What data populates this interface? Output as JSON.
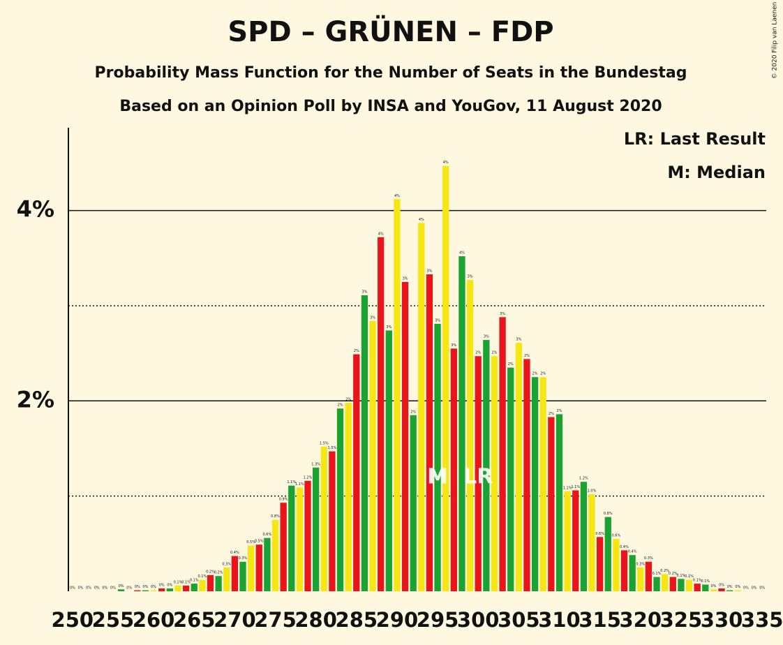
{
  "chart_data": {
    "type": "bar",
    "title": "SPD – GRÜNEN – FDP",
    "subtitle": "Probability Mass Function for the Number of Seats in the Bundestag",
    "subtitle2": "Based on an Opinion Poll by INSA and YouGov, 11 August 2020",
    "copyright": "© 2020 Filip van Laenen",
    "legend": [
      "LR: Last Result",
      "M: Median"
    ],
    "x": [
      250,
      251,
      252,
      253,
      254,
      255,
      256,
      257,
      258,
      259,
      260,
      261,
      262,
      263,
      264,
      265,
      266,
      267,
      268,
      269,
      270,
      271,
      272,
      273,
      274,
      275,
      276,
      277,
      278,
      279,
      280,
      281,
      282,
      283,
      284,
      285,
      286,
      287,
      288,
      289,
      290,
      291,
      292,
      293,
      294,
      295,
      296,
      297,
      298,
      299,
      300,
      301,
      302,
      303,
      304,
      305,
      306,
      307,
      308,
      309,
      310,
      311,
      312,
      313,
      314,
      315,
      316,
      317,
      318,
      319,
      320,
      321,
      322,
      323,
      324,
      325,
      326,
      327,
      328,
      329,
      330,
      331,
      332,
      333,
      334,
      335
    ],
    "values": [
      0,
      0,
      0,
      0,
      0,
      0,
      0.02,
      0,
      0.01,
      0.01,
      0.01,
      0.03,
      0.03,
      0.06,
      0.06,
      0.08,
      0.12,
      0.17,
      0.16,
      0.25,
      0.37,
      0.31,
      0.48,
      0.49,
      0.56,
      0.75,
      0.93,
      1.11,
      1.09,
      1.16,
      1.3,
      1.52,
      1.47,
      1.92,
      1.98,
      2.49,
      3.11,
      2.84,
      3.72,
      2.74,
      4.12,
      3.25,
      1.85,
      3.87,
      3.33,
      2.81,
      4.47,
      2.55,
      3.52,
      3.27,
      2.47,
      2.64,
      2.47,
      2.88,
      2.35,
      2.61,
      2.44,
      2.25,
      2.25,
      1.83,
      1.86,
      1.05,
      1.06,
      1.15,
      1.02,
      0.57,
      0.78,
      0.55,
      0.43,
      0.38,
      0.25,
      0.31,
      0.15,
      0.18,
      0.15,
      0.13,
      0.12,
      0.08,
      0.07,
      0.02,
      0.03,
      0.01,
      0.01,
      0,
      0,
      0
    ],
    "value_labels": [
      "0%",
      "0%",
      "0%",
      "0%",
      "0%",
      "0%",
      "0%",
      "0%",
      "0%",
      "0%",
      "0%",
      "0%",
      "0%",
      "0.1%",
      "0.1%",
      "0.1%",
      "0.1%",
      "0.2%",
      "0.2%",
      "0.3%",
      "0.4%",
      "0.3%",
      "0.5%",
      "0.5%",
      "0.6%",
      "0.8%",
      "0.9%",
      "1.1%",
      "1.1%",
      "1.2%",
      "1.3%",
      "1.5%",
      "1.5%",
      "2%",
      "2%",
      "2%",
      "3%",
      "3%",
      "4%",
      "3%",
      "4%",
      "3%",
      "2%",
      "4%",
      "3%",
      "3%",
      "4%",
      "3%",
      "4%",
      "3%",
      "2%",
      "3%",
      "2%",
      "3%",
      "2%",
      "3%",
      "2%",
      "2%",
      "2%",
      "2%",
      "2%",
      "1.1%",
      "1.1%",
      "1.2%",
      "1.0%",
      "0.6%",
      "0.8%",
      "0.6%",
      "0.4%",
      "0.4%",
      "0.3%",
      "0.3%",
      "0.1%",
      "0.2%",
      "0.2%",
      "0.1%",
      "0.1%",
      "0.1%",
      "0.1%",
      "0%",
      "0%",
      "0%",
      "0%",
      "0%",
      "0%",
      "0%"
    ],
    "bar_colors": [
      "#1aa332",
      "#f5e614",
      "#e8161b"
    ],
    "xlim": [
      249.5,
      335.5
    ],
    "xticks": [
      250,
      255,
      260,
      265,
      270,
      275,
      280,
      285,
      290,
      295,
      300,
      305,
      310,
      315,
      320,
      325,
      330,
      335
    ],
    "ylim": [
      0,
      4.87
    ],
    "yticks": [
      {
        "value": 2,
        "label": "2%"
      },
      {
        "value": 4,
        "label": "4%"
      }
    ],
    "minor_yticks": [
      1,
      3
    ],
    "median": {
      "x": 295,
      "label": "M"
    },
    "last_result": {
      "x": 300,
      "label": "LR"
    }
  }
}
